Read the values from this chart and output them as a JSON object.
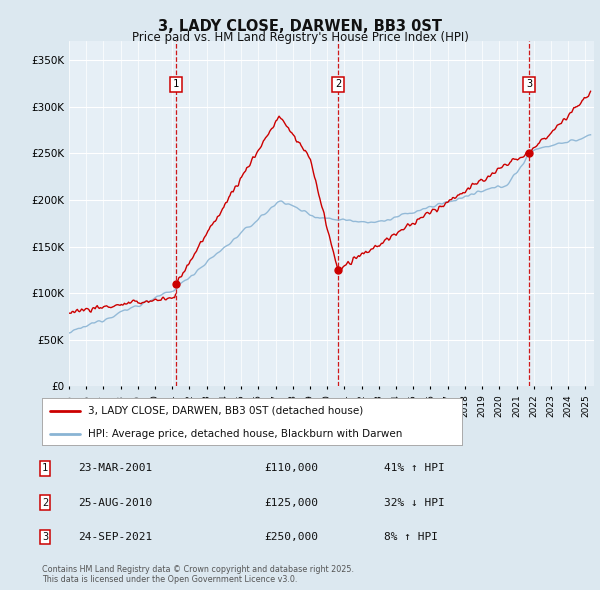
{
  "title": "3, LADY CLOSE, DARWEN, BB3 0ST",
  "subtitle": "Price paid vs. HM Land Registry's House Price Index (HPI)",
  "ylabel_ticks": [
    "£0",
    "£50K",
    "£100K",
    "£150K",
    "£200K",
    "£250K",
    "£300K",
    "£350K"
  ],
  "ytick_values": [
    0,
    50000,
    100000,
    150000,
    200000,
    250000,
    300000,
    350000
  ],
  "ylim": [
    0,
    370000
  ],
  "xlim_start": 1995.0,
  "xlim_end": 2025.5,
  "sale_dates": [
    2001.22,
    2010.65,
    2021.73
  ],
  "sale_prices": [
    110000,
    125000,
    250000
  ],
  "sale_labels": [
    "1",
    "2",
    "3"
  ],
  "legend_label_red": "3, LADY CLOSE, DARWEN, BB3 0ST (detached house)",
  "legend_label_blue": "HPI: Average price, detached house, Blackburn with Darwen",
  "table_entries": [
    {
      "num": "1",
      "date": "23-MAR-2001",
      "price": "£110,000",
      "pct": "41% ↑ HPI"
    },
    {
      "num": "2",
      "date": "25-AUG-2010",
      "price": "£125,000",
      "pct": "32% ↓ HPI"
    },
    {
      "num": "3",
      "date": "24-SEP-2021",
      "price": "£250,000",
      "pct": "8% ↑ HPI"
    }
  ],
  "footer": "Contains HM Land Registry data © Crown copyright and database right 2025.\nThis data is licensed under the Open Government Licence v3.0.",
  "bg_color": "#dce8f0",
  "plot_bg_color": "#e6eff6",
  "red_color": "#cc0000",
  "blue_color": "#8ab4d4",
  "grid_color": "#ffffff",
  "dashed_line_color": "#cc0000"
}
